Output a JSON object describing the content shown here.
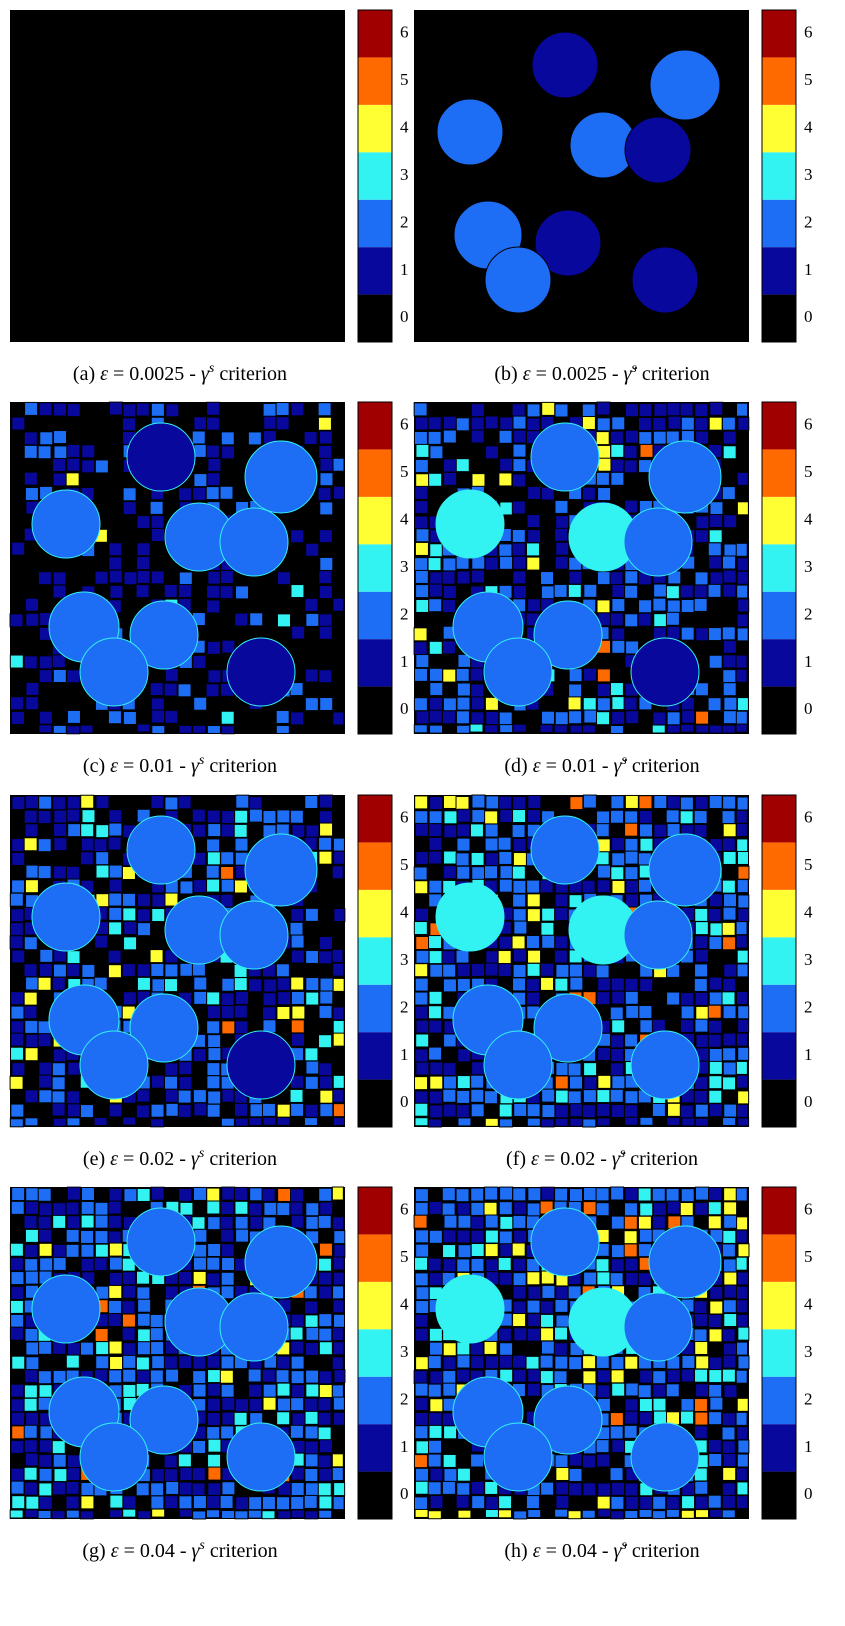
{
  "panels": [
    {
      "label": "(a)",
      "symbol": "ε",
      "equals": "=",
      "strain": "0.0025",
      "dash": "-",
      "variable": "γ",
      "superscript": "s",
      "criterion": "criterion"
    },
    {
      "label": "(b)",
      "symbol": "ε",
      "equals": "=",
      "strain": "0.0025",
      "dash": "-",
      "variable": "γ̇",
      "superscript": "s",
      "criterion": "criterion"
    },
    {
      "label": "(c)",
      "symbol": "ε",
      "equals": "=",
      "strain": "0.01",
      "dash": "-",
      "variable": "γ",
      "superscript": "s",
      "criterion": "criterion"
    },
    {
      "label": "(d)",
      "symbol": "ε",
      "equals": "=",
      "strain": "0.01",
      "dash": "-",
      "variable": "γ̇",
      "superscript": "s",
      "criterion": "criterion"
    },
    {
      "label": "(e)",
      "symbol": "ε",
      "equals": "=",
      "strain": "0.02",
      "dash": "-",
      "variable": "γ",
      "superscript": "s",
      "criterion": "criterion"
    },
    {
      "label": "(f)",
      "symbol": "ε",
      "equals": "=",
      "strain": "0.02",
      "dash": "-",
      "variable": "γ̇",
      "superscript": "s",
      "criterion": "criterion"
    },
    {
      "label": "(g)",
      "symbol": "ε",
      "equals": "=",
      "strain": "0.04",
      "dash": "-",
      "variable": "γ",
      "superscript": "s",
      "criterion": "criterion"
    },
    {
      "label": "(h)",
      "symbol": "ε",
      "equals": "=",
      "strain": "0.04",
      "dash": "-",
      "variable": "γ̇",
      "superscript": "s",
      "criterion": "criterion"
    }
  ],
  "colorbar": {
    "ticks": [
      0,
      1,
      2,
      3,
      4,
      5,
      6
    ],
    "colors": [
      "#000000",
      "#08089c",
      "#1e6ef5",
      "#33f2f2",
      "#ffff33",
      "#ff6a00",
      "#a00000"
    ]
  }
}
